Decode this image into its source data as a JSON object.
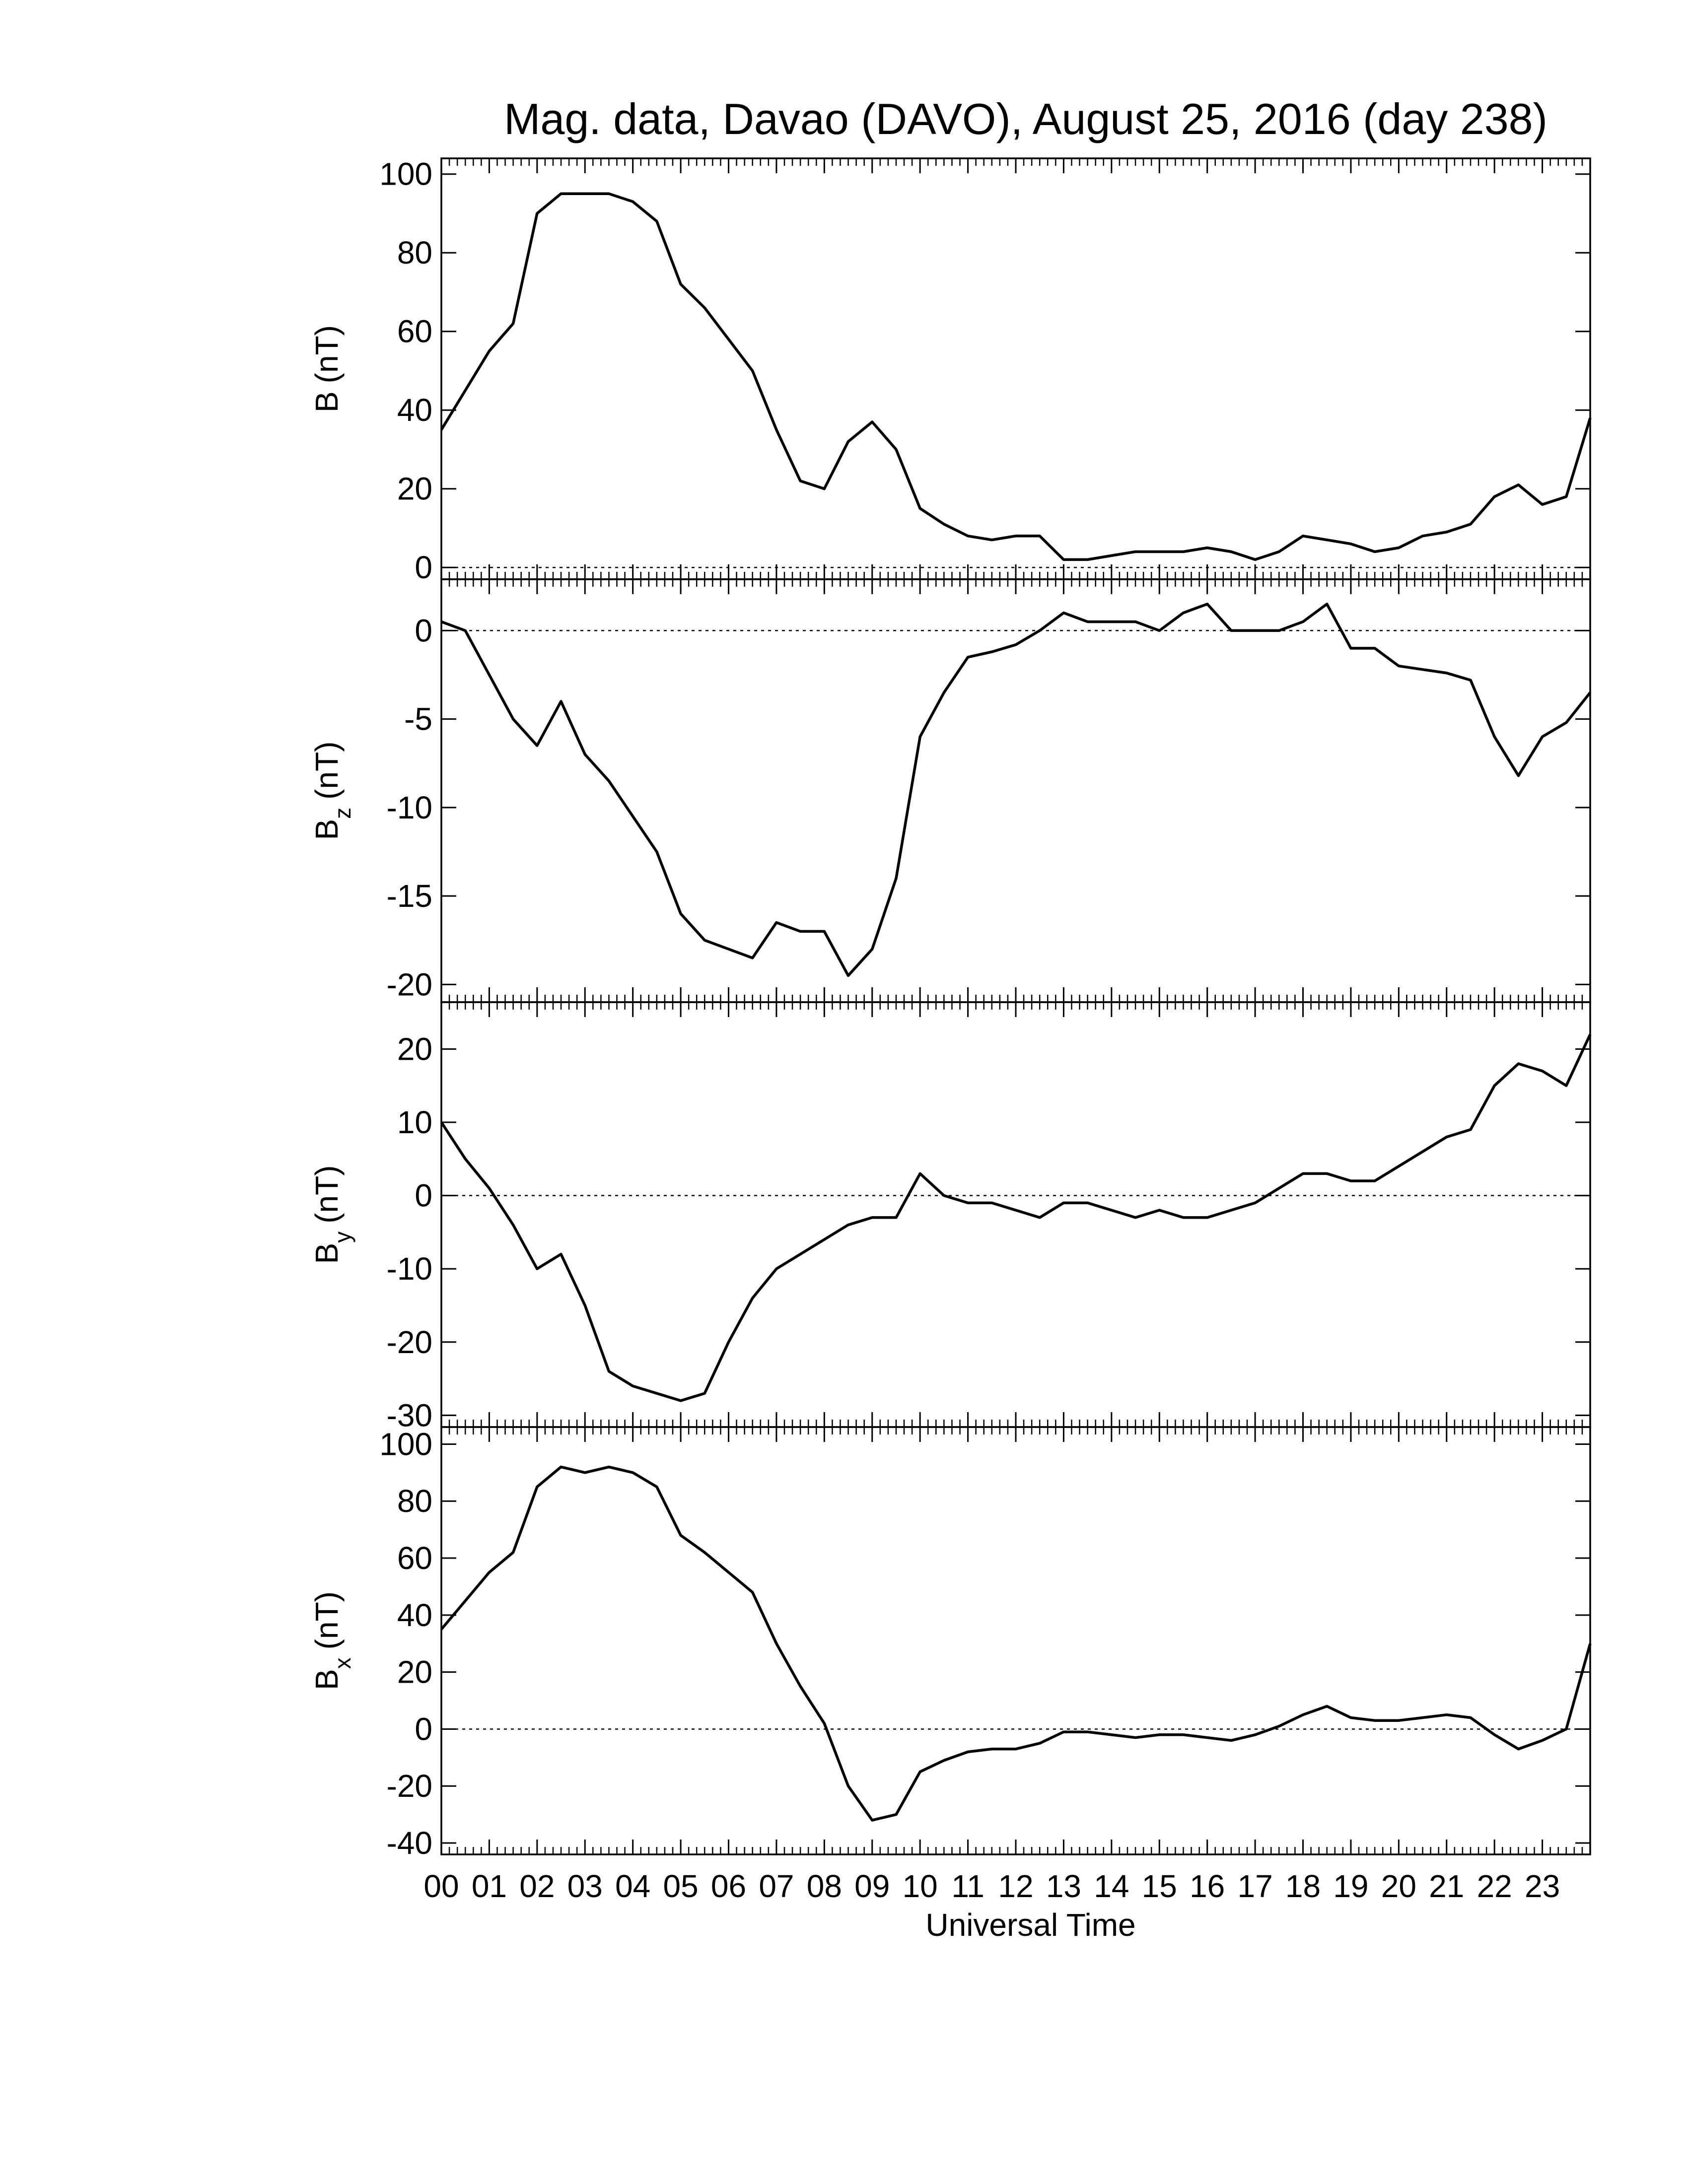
{
  "chart_data": [
    {
      "type": "line",
      "title": "Mag. data, Davao (DAVO), August 25, 2016 (day 238)",
      "ylabel": {
        "symbol": "B",
        "unit": "(nT)"
      },
      "ylim": [
        -3,
        104
      ],
      "yticks": [
        0,
        20,
        40,
        60,
        80,
        100
      ],
      "hline": 0,
      "series": [
        {
          "color": "#000000",
          "x": [
            0,
            0.5,
            1,
            1.5,
            2,
            2.5,
            3,
            3.5,
            4,
            4.5,
            5,
            5.5,
            6,
            6.5,
            7,
            7.5,
            8,
            8.5,
            9,
            9.5,
            10,
            10.5,
            11,
            11.5,
            12,
            12.5,
            13,
            13.5,
            14,
            14.5,
            15,
            15.5,
            16,
            16.5,
            17,
            17.5,
            18,
            18.5,
            19,
            19.5,
            20,
            20.5,
            21,
            21.5,
            22,
            22.5,
            23,
            23.5,
            24
          ],
          "values": [
            35,
            45,
            55,
            62,
            90,
            95,
            95,
            95,
            93,
            88,
            72,
            66,
            58,
            50,
            35,
            22,
            20,
            32,
            37,
            30,
            15,
            11,
            8,
            7,
            8,
            8,
            2,
            2,
            3,
            4,
            4,
            4,
            5,
            4,
            2,
            4,
            8,
            7,
            6,
            4,
            5,
            8,
            9,
            11,
            18,
            21,
            16,
            18,
            38
          ]
        }
      ]
    },
    {
      "type": "line",
      "ylabel": {
        "symbol": "B",
        "subscript": "z",
        "unit": "(nT)"
      },
      "ylim": [
        -21,
        2.9
      ],
      "yticks": [
        -20,
        -15,
        -10,
        -5,
        0
      ],
      "hline": 0,
      "series": [
        {
          "color": "#000000",
          "x": [
            0,
            0.5,
            1,
            1.5,
            2,
            2.5,
            3,
            3.5,
            4,
            4.5,
            5,
            5.5,
            6,
            6.5,
            7,
            7.5,
            8,
            8.5,
            9,
            9.5,
            10,
            10.5,
            11,
            11.5,
            12,
            12.5,
            13,
            13.5,
            14,
            14.5,
            15,
            15.5,
            16,
            16.5,
            17,
            17.5,
            18,
            18.5,
            19,
            19.5,
            20,
            20.5,
            21,
            21.5,
            22,
            22.5,
            23,
            23.5,
            24
          ],
          "values": [
            0.5,
            0,
            -2.5,
            -5,
            -6.5,
            -4,
            -7,
            -8.5,
            -10.5,
            -12.5,
            -16,
            -17.5,
            -18,
            -18.5,
            -16.5,
            -17,
            -17,
            -19.5,
            -18,
            -14,
            -6,
            -3.5,
            -1.5,
            -1.2,
            -0.8,
            0,
            1,
            0.5,
            0.5,
            0.5,
            0,
            1,
            1.5,
            0,
            0,
            0,
            0.5,
            1.5,
            -1,
            -1,
            -2,
            -2.2,
            -2.4,
            -2.8,
            -6,
            -8.2,
            -6,
            -5.2,
            -3.5
          ]
        }
      ]
    },
    {
      "type": "line",
      "ylabel": {
        "symbol": "B",
        "subscript": "y",
        "unit": "(nT)"
      },
      "ylim": [
        -31.6,
        26.4
      ],
      "yticks": [
        -30,
        -20,
        -10,
        0,
        10,
        20
      ],
      "hline": 0,
      "series": [
        {
          "color": "#000000",
          "x": [
            0,
            0.5,
            1,
            1.5,
            2,
            2.5,
            3,
            3.5,
            4,
            4.5,
            5,
            5.5,
            6,
            6.5,
            7,
            7.5,
            8,
            8.5,
            9,
            9.5,
            10,
            10.5,
            11,
            11.5,
            12,
            12.5,
            13,
            13.5,
            14,
            14.5,
            15,
            15.5,
            16,
            16.5,
            17,
            17.5,
            18,
            18.5,
            19,
            19.5,
            20,
            20.5,
            21,
            21.5,
            22,
            22.5,
            23,
            23.5,
            24
          ],
          "values": [
            10,
            5,
            1,
            -4,
            -10,
            -8,
            -15,
            -24,
            -26,
            -27,
            -28,
            -27,
            -20,
            -14,
            -10,
            -8,
            -6,
            -4,
            -3,
            -3,
            3,
            0,
            -1,
            -1,
            -2,
            -3,
            -1,
            -1,
            -2,
            -3,
            -2,
            -3,
            -3,
            -2,
            -1,
            1,
            3,
            3,
            2,
            2,
            4,
            6,
            8,
            9,
            15,
            18,
            17,
            15,
            22
          ]
        }
      ]
    },
    {
      "type": "line",
      "ylabel": {
        "symbol": "B",
        "subscript": "x",
        "unit": "(nT)"
      },
      "xlabel": "Universal Time",
      "xlim": [
        0,
        24
      ],
      "xticks": [
        {
          "value": 0,
          "label": "00"
        },
        {
          "value": 1,
          "label": "01"
        },
        {
          "value": 2,
          "label": "02"
        },
        {
          "value": 3,
          "label": "03"
        },
        {
          "value": 4,
          "label": "04"
        },
        {
          "value": 5,
          "label": "05"
        },
        {
          "value": 6,
          "label": "06"
        },
        {
          "value": 7,
          "label": "07"
        },
        {
          "value": 8,
          "label": "08"
        },
        {
          "value": 9,
          "label": "09"
        },
        10,
        11,
        12,
        13,
        14,
        15,
        16,
        17,
        18,
        19,
        20,
        21,
        22,
        23
      ],
      "xminor": 6,
      "ylim": [
        -44,
        106
      ],
      "yticks": [
        -40,
        -20,
        0,
        20,
        40,
        60,
        80,
        100
      ],
      "hline": 0,
      "series": [
        {
          "color": "#000000",
          "x": [
            0,
            0.5,
            1,
            1.5,
            2,
            2.5,
            3,
            3.5,
            4,
            4.5,
            5,
            5.5,
            6,
            6.5,
            7,
            7.5,
            8,
            8.5,
            9,
            9.5,
            10,
            10.5,
            11,
            11.5,
            12,
            12.5,
            13,
            13.5,
            14,
            14.5,
            15,
            15.5,
            16,
            16.5,
            17,
            17.5,
            18,
            18.5,
            19,
            19.5,
            20,
            20.5,
            21,
            21.5,
            22,
            22.5,
            23,
            23.5,
            24
          ],
          "values": [
            35,
            45,
            55,
            62,
            85,
            92,
            90,
            92,
            90,
            85,
            68,
            62,
            55,
            48,
            30,
            15,
            2,
            -20,
            -32,
            -30,
            -15,
            -11,
            -8,
            -7,
            -7,
            -5,
            -1,
            -1,
            -2,
            -3,
            -2,
            -2,
            -3,
            -4,
            -2,
            1,
            5,
            8,
            4,
            3,
            3,
            4,
            5,
            4,
            -2,
            -7,
            -4,
            0,
            30
          ]
        }
      ]
    }
  ]
}
